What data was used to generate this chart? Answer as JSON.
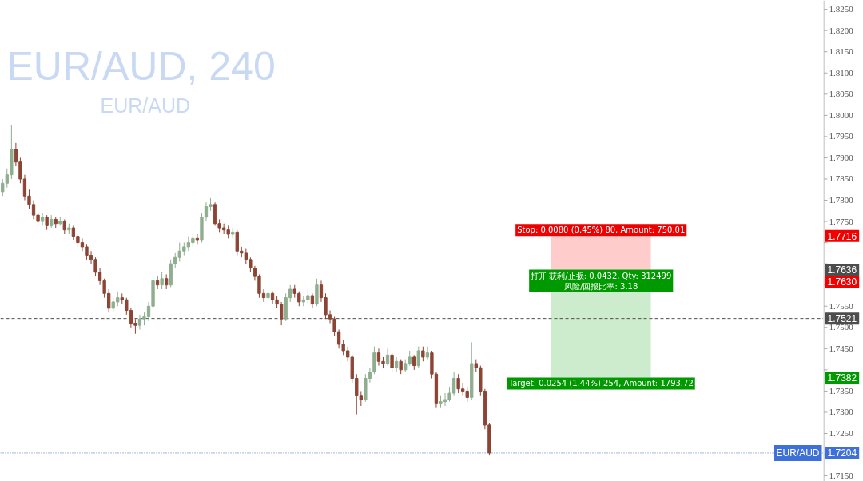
{
  "chart_data": {
    "type": "candlestick",
    "title": "EUR/AUD, 240",
    "subtitle": "EUR/AUD",
    "categories": [
      null,
      null,
      null,
      null,
      null,
      null,
      null,
      null,
      null,
      null,
      null,
      null,
      null,
      null,
      null,
      null,
      null,
      null,
      null,
      null,
      null,
      null,
      null,
      null,
      null,
      null,
      null,
      null,
      null,
      null,
      null,
      null,
      null,
      null,
      null,
      null,
      null,
      null,
      null,
      null,
      null,
      null,
      null,
      null,
      null,
      null,
      null,
      null,
      null,
      null,
      null,
      null,
      null,
      null,
      null,
      null,
      null,
      null,
      null,
      null,
      null,
      null,
      null,
      null,
      null,
      null,
      null,
      null,
      null,
      null,
      null,
      null,
      null,
      null,
      null,
      null,
      null,
      null,
      null,
      null,
      null,
      null,
      null,
      null,
      null,
      null,
      null,
      null,
      null,
      null,
      null,
      null,
      null,
      null,
      null,
      null,
      null,
      null,
      null,
      null,
      null,
      null,
      null,
      null,
      null,
      null,
      null,
      null,
      null,
      null,
      null,
      null,
      null,
      null,
      null,
      null,
      null,
      null,
      null,
      null,
      null,
      null,
      null,
      null,
      null,
      null,
      null,
      null,
      null,
      null,
      null,
      null,
      null,
      null,
      null,
      null,
      null,
      null,
      null,
      null,
      null,
      null,
      null,
      null,
      null,
      null,
      null,
      null,
      null,
      null,
      null,
      null,
      null,
      null,
      null,
      null,
      null,
      null,
      null,
      null,
      null,
      null,
      null,
      null,
      null,
      null,
      null,
      null,
      null,
      null,
      null,
      null,
      null,
      null,
      null,
      null,
      null,
      null,
      null,
      null,
      null,
      null,
      null,
      null,
      null,
      null
    ],
    "ohlc": [
      [
        1.782,
        1.785,
        1.781,
        1.784
      ],
      [
        1.784,
        1.7875,
        1.783,
        1.786
      ],
      [
        1.786,
        1.7977,
        1.785,
        1.792
      ],
      [
        1.792,
        1.7935,
        1.788,
        1.789
      ],
      [
        1.789,
        1.79,
        1.784,
        1.785
      ],
      [
        1.785,
        1.786,
        1.78,
        1.781
      ],
      [
        1.781,
        1.7825,
        1.778,
        1.779
      ],
      [
        1.779,
        1.78,
        1.7755,
        1.7765
      ],
      [
        1.7765,
        1.7775,
        1.774,
        1.775
      ],
      [
        1.775,
        1.777,
        1.774,
        1.776
      ],
      [
        1.776,
        1.7765,
        1.773,
        1.774
      ],
      [
        1.774,
        1.7765,
        1.7735,
        1.7755
      ],
      [
        1.7755,
        1.776,
        1.7735,
        1.7745
      ],
      [
        1.7745,
        1.776,
        1.774,
        1.775
      ],
      [
        1.775,
        1.7755,
        1.772,
        1.773
      ],
      [
        1.773,
        1.7745,
        1.772,
        1.7735
      ],
      [
        1.7735,
        1.774,
        1.7705,
        1.7715
      ],
      [
        1.7715,
        1.772,
        1.769,
        1.77
      ],
      [
        1.77,
        1.771,
        1.768,
        1.769
      ],
      [
        1.769,
        1.7695,
        1.766,
        1.767
      ],
      [
        1.767,
        1.768,
        1.765,
        1.766
      ],
      [
        1.766,
        1.7665,
        1.762,
        1.763
      ],
      [
        1.763,
        1.764,
        1.76,
        1.761
      ],
      [
        1.761,
        1.7615,
        1.757,
        1.758
      ],
      [
        1.758,
        1.759,
        1.7535,
        1.7545
      ],
      [
        1.7545,
        1.757,
        1.7535,
        1.756
      ],
      [
        1.756,
        1.7585,
        1.755,
        1.757
      ],
      [
        1.757,
        1.758,
        1.7555,
        1.7565
      ],
      [
        1.7565,
        1.757,
        1.753,
        1.754
      ],
      [
        1.754,
        1.7545,
        1.75,
        1.751
      ],
      [
        1.751,
        1.752,
        1.7485,
        1.7505
      ],
      [
        1.7505,
        1.753,
        1.7495,
        1.752
      ],
      [
        1.752,
        1.7535,
        1.7505,
        1.7525
      ],
      [
        1.7525,
        1.756,
        1.7515,
        1.755
      ],
      [
        1.755,
        1.762,
        1.7545,
        1.761
      ],
      [
        1.761,
        1.762,
        1.759,
        1.76
      ],
      [
        1.76,
        1.763,
        1.759,
        1.7615
      ],
      [
        1.7615,
        1.7625,
        1.759,
        1.76
      ],
      [
        1.76,
        1.766,
        1.7595,
        1.765
      ],
      [
        1.765,
        1.7675,
        1.764,
        1.7665
      ],
      [
        1.7665,
        1.77,
        1.7655,
        1.768
      ],
      [
        1.768,
        1.77,
        1.767,
        1.769
      ],
      [
        1.769,
        1.7715,
        1.768,
        1.77
      ],
      [
        1.77,
        1.772,
        1.769,
        1.771
      ],
      [
        1.771,
        1.772,
        1.7695,
        1.7705
      ],
      [
        1.7705,
        1.777,
        1.77,
        1.776
      ],
      [
        1.776,
        1.7795,
        1.775,
        1.7785
      ],
      [
        1.7785,
        1.7805,
        1.7775,
        1.779
      ],
      [
        1.779,
        1.7795,
        1.774,
        1.7745
      ],
      [
        1.7745,
        1.7755,
        1.7725,
        1.7735
      ],
      [
        1.7735,
        1.7745,
        1.772,
        1.773
      ],
      [
        1.773,
        1.774,
        1.771,
        1.772
      ],
      [
        1.772,
        1.7735,
        1.771,
        1.7725
      ],
      [
        1.7725,
        1.773,
        1.767,
        1.768
      ],
      [
        1.768,
        1.769,
        1.7665,
        1.7675
      ],
      [
        1.7675,
        1.7685,
        1.765,
        1.766
      ],
      [
        1.766,
        1.7665,
        1.763,
        1.764
      ],
      [
        1.764,
        1.7645,
        1.761,
        1.762
      ],
      [
        1.762,
        1.7625,
        1.757,
        1.758
      ],
      [
        1.758,
        1.759,
        1.756,
        1.757
      ],
      [
        1.757,
        1.759,
        1.7565,
        1.758
      ],
      [
        1.758,
        1.7585,
        1.7555,
        1.7565
      ],
      [
        1.7565,
        1.7575,
        1.7545,
        1.7555
      ],
      [
        1.7555,
        1.756,
        1.7505,
        1.752
      ],
      [
        1.752,
        1.758,
        1.7515,
        1.757
      ],
      [
        1.757,
        1.76,
        1.756,
        1.759
      ],
      [
        1.759,
        1.76,
        1.757,
        1.758
      ],
      [
        1.758,
        1.7585,
        1.755,
        1.756
      ],
      [
        1.756,
        1.7575,
        1.755,
        1.7565
      ],
      [
        1.7565,
        1.759,
        1.7555,
        1.7575
      ],
      [
        1.7575,
        1.758,
        1.7545,
        1.7555
      ],
      [
        1.7555,
        1.7615,
        1.755,
        1.76
      ],
      [
        1.76,
        1.761,
        1.756,
        1.757
      ],
      [
        1.757,
        1.758,
        1.752,
        1.753
      ],
      [
        1.753,
        1.754,
        1.751,
        1.752
      ],
      [
        1.752,
        1.7525,
        1.748,
        1.749
      ],
      [
        1.749,
        1.7495,
        1.745,
        1.746
      ],
      [
        1.746,
        1.747,
        1.7435,
        1.7445
      ],
      [
        1.7445,
        1.7455,
        1.742,
        1.743
      ],
      [
        1.743,
        1.7435,
        1.737,
        1.738
      ],
      [
        1.738,
        1.739,
        1.7295,
        1.734
      ],
      [
        1.734,
        1.735,
        1.7315,
        1.733
      ],
      [
        1.733,
        1.739,
        1.7325,
        1.738
      ],
      [
        1.738,
        1.7405,
        1.737,
        1.7395
      ],
      [
        1.7395,
        1.7455,
        1.739,
        1.744
      ],
      [
        1.744,
        1.745,
        1.741,
        1.742
      ],
      [
        1.742,
        1.743,
        1.7405,
        1.7415
      ],
      [
        1.7415,
        1.745,
        1.741,
        1.7435
      ],
      [
        1.7435,
        1.744,
        1.7395,
        1.7405
      ],
      [
        1.7405,
        1.743,
        1.7395,
        1.742
      ],
      [
        1.742,
        1.7425,
        1.739,
        1.74
      ],
      [
        1.74,
        1.7425,
        1.7395,
        1.7415
      ],
      [
        1.7415,
        1.7445,
        1.741,
        1.743
      ],
      [
        1.743,
        1.7435,
        1.74,
        1.741
      ],
      [
        1.741,
        1.7455,
        1.7405,
        1.7445
      ],
      [
        1.7445,
        1.7455,
        1.742,
        1.743
      ],
      [
        1.743,
        1.7455,
        1.7425,
        1.744
      ],
      [
        1.744,
        1.7445,
        1.738,
        1.739
      ],
      [
        1.739,
        1.7395,
        1.731,
        1.732
      ],
      [
        1.732,
        1.734,
        1.731,
        1.7325
      ],
      [
        1.7325,
        1.7345,
        1.7315,
        1.733
      ],
      [
        1.733,
        1.736,
        1.7325,
        1.7345
      ],
      [
        1.7345,
        1.7395,
        1.734,
        1.738
      ],
      [
        1.738,
        1.739,
        1.7345,
        1.7355
      ],
      [
        1.7355,
        1.737,
        1.734,
        1.735
      ],
      [
        1.735,
        1.736,
        1.7325,
        1.7335
      ],
      [
        1.7335,
        1.7465,
        1.733,
        1.7415
      ],
      [
        1.7415,
        1.7425,
        1.7395,
        1.7405
      ],
      [
        1.7405,
        1.741,
        1.734,
        1.735
      ],
      [
        1.735,
        1.7355,
        1.726,
        1.727
      ],
      [
        1.727,
        1.7275,
        1.7198,
        1.7204
      ],
      null,
      null,
      null,
      null,
      null,
      null,
      null,
      null,
      null,
      null,
      null,
      null,
      null,
      null,
      null,
      null,
      null,
      null,
      null,
      null,
      null,
      null,
      null,
      null,
      null,
      null,
      null,
      null,
      null,
      null,
      null,
      null,
      null,
      null,
      null,
      null,
      null,
      null,
      null,
      null,
      null,
      null,
      null,
      null,
      null,
      null,
      null,
      null,
      null,
      null,
      null,
      null,
      null,
      null,
      null,
      null,
      null,
      null,
      null,
      null,
      null,
      null,
      null,
      null,
      null,
      null,
      null,
      null,
      null,
      null,
      null,
      null,
      null,
      null,
      null
    ],
    "ylim": [
      1.7137,
      1.8271
    ],
    "yticks": [
      {
        "value": 1.715,
        "label": "1.7150"
      },
      {
        "value": 1.72,
        "label": null
      },
      {
        "value": 1.725,
        "label": "1.7250"
      },
      {
        "value": 1.73,
        "label": "1.7300"
      },
      {
        "value": 1.735,
        "label": "1.7350"
      },
      {
        "value": 1.74,
        "label": null
      },
      {
        "value": 1.745,
        "label": "1.7450"
      },
      {
        "value": 1.75,
        "label": "1.7500"
      },
      {
        "value": 1.755,
        "label": "1.7550"
      },
      {
        "value": 1.76,
        "label": null
      },
      {
        "value": 1.765,
        "label": null
      },
      {
        "value": 1.77,
        "label": null
      },
      {
        "value": 1.775,
        "label": "1.7750"
      },
      {
        "value": 1.78,
        "label": "1.7800"
      },
      {
        "value": 1.785,
        "label": "1.7850"
      },
      {
        "value": 1.79,
        "label": "1.7900"
      },
      {
        "value": 1.795,
        "label": "1.7950"
      },
      {
        "value": 1.8,
        "label": "1.8000"
      },
      {
        "value": 1.805,
        "label": "1.8050"
      },
      {
        "value": 1.81,
        "label": "1.8100"
      },
      {
        "value": 1.815,
        "label": "1.8150"
      },
      {
        "value": 1.82,
        "label": "1.8200"
      },
      {
        "value": 1.825,
        "label": "1.8250"
      }
    ],
    "tick_labels": "y",
    "grid": false,
    "bands": [
      {
        "axis": "y",
        "from": 1.7636,
        "to": 1.7716,
        "color": "#ffcccc"
      },
      {
        "axis": "y",
        "from": 1.7382,
        "to": 1.7636,
        "color": "#cdeccd"
      }
    ],
    "ref_lines": [
      {
        "axis": "y",
        "value": 1.7521,
        "label": "1.7521",
        "color": "#4d4d4d",
        "line_style": "dashed"
      },
      {
        "axis": "y",
        "value": 1.7204,
        "label": "1.7204",
        "color": "#3f6fd8",
        "line_style": "dotted"
      }
    ],
    "annotations": [
      {
        "text": "Stop: 0.0080 (0.45%) 80, Amount: 750.01",
        "y": 1.7716
      },
      {
        "text": "打开 获利/止损: 0.0432, Qty: 312499\n风险/回报比率: 3.18",
        "y": 1.7636
      },
      {
        "text": "Target: 0.0254 (1.44%) 254, Amount: 1793.72",
        "y": 1.7382
      },
      {
        "text": "1.7716",
        "y": 1.7716
      },
      {
        "text": "1.7636",
        "y": 1.7636
      },
      "1.7630",
      {
        "text": "1.7382",
        "y": 1.7382
      },
      "EUR/AUD"
    ]
  }
}
